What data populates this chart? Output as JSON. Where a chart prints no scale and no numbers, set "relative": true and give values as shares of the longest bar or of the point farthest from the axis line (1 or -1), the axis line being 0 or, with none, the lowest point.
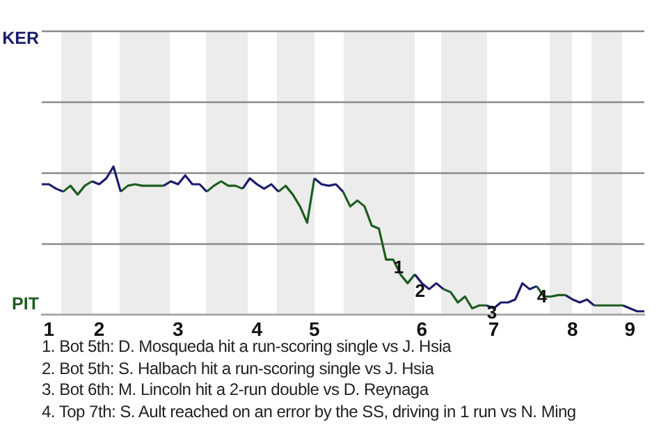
{
  "chart_data": {
    "type": "line",
    "categories": [
      null,
      "1",
      null,
      null,
      null,
      null,
      null,
      null,
      "2",
      null,
      null,
      null,
      null,
      null,
      null,
      null,
      null,
      null,
      null,
      "3",
      null,
      null,
      null,
      null,
      null,
      null,
      null,
      null,
      null,
      null,
      "4",
      null,
      null,
      null,
      null,
      null,
      null,
      null,
      "5",
      null,
      null,
      null,
      null,
      null,
      null,
      null,
      null,
      null,
      null,
      null,
      null,
      null,
      null,
      "6",
      null,
      null,
      null,
      null,
      null,
      null,
      null,
      null,
      null,
      "7",
      null,
      null,
      null,
      null,
      null,
      null,
      null,
      null,
      null,
      null,
      "8",
      null,
      null,
      null,
      null,
      null,
      null,
      null,
      "9",
      null,
      null
    ],
    "relative": true,
    "series": [
      {
        "color": "#1c1c6b",
        "values": [
          0.88,
          0.88,
          0.85,
          0.83,
          null,
          null,
          null,
          0.9,
          0.88,
          0.92,
          1,
          0.83,
          null,
          null,
          null,
          null,
          null,
          0.87,
          0.9,
          0.88,
          0.94,
          0.88,
          0.88,
          0.83,
          null,
          null,
          null,
          null,
          0.85,
          0.92,
          0.88,
          0.85,
          0.88,
          0.83,
          null,
          null,
          null,
          null,
          0.92,
          0.88,
          0.87,
          0.88,
          0.83,
          null,
          null,
          null,
          null,
          null,
          null,
          null,
          null,
          null,
          0.27,
          0.21,
          0.17,
          0.21,
          0.17,
          null,
          null,
          null,
          null,
          null,
          0.06,
          0.04,
          0.08,
          0.08,
          0.1,
          0.21,
          0.17,
          0.19,
          null,
          null,
          null,
          0.13,
          0.1,
          0.08,
          0.1,
          0.06,
          null,
          null,
          null,
          0.06,
          0.04,
          0.02,
          0.02
        ]
      },
      {
        "color": "#1e5c1e",
        "values": [
          null,
          null,
          null,
          0.83,
          0.87,
          0.81,
          0.87,
          0.9,
          null,
          null,
          null,
          0.83,
          0.87,
          0.88,
          0.87,
          0.87,
          0.87,
          0.87,
          null,
          null,
          null,
          null,
          null,
          0.83,
          0.87,
          0.9,
          0.87,
          0.87,
          0.85,
          null,
          null,
          null,
          null,
          0.83,
          0.87,
          0.81,
          0.73,
          0.62,
          0.92,
          null,
          null,
          null,
          0.83,
          0.73,
          0.77,
          0.73,
          0.6,
          0.58,
          0.37,
          0.37,
          0.27,
          0.21,
          0.27,
          null,
          null,
          null,
          0.17,
          0.15,
          0.08,
          0.12,
          0.04,
          0.06,
          0.06,
          null,
          null,
          null,
          null,
          null,
          null,
          0.19,
          0.12,
          0.12,
          0.13,
          0.13,
          null,
          null,
          null,
          0.06,
          0.06,
          0.06,
          0.06,
          0.06,
          null,
          null,
          null
        ]
      }
    ],
    "ref_lines": [
      {
        "axis": "y",
        "value": 0.48,
        "color": "#8a8a8a"
      },
      {
        "axis": "y",
        "value": 0.96,
        "color": "#8a8a8a"
      },
      {
        "axis": "y",
        "value": 1.44,
        "color": "#8a8a8a"
      },
      {
        "axis": "y",
        "value": 1.92,
        "color": "#8a8a8a"
      }
    ],
    "legend": false,
    "marker": "none",
    "annotations": [
      "KER",
      "PIT",
      {
        "text": "1",
        "y": 0.37
      },
      {
        "text": "2",
        "y": 0.21
      },
      {
        "text": "3",
        "y": 0.06
      },
      {
        "text": "4",
        "y": 0.17
      },
      "1. Bot 5th: D. Mosqueda hit a run-scoring single vs J. Hsia",
      "2. Bot 5th: S. Halbach hit a run-scoring single vs J. Hsia",
      "3. Bot 6th: M. Lincoln hit a 2-run double vs D. Reynaga",
      "4. Top 7th: S. Ault reached on an error by the SS, driving in 1 run vs N. Ming"
    ]
  }
}
